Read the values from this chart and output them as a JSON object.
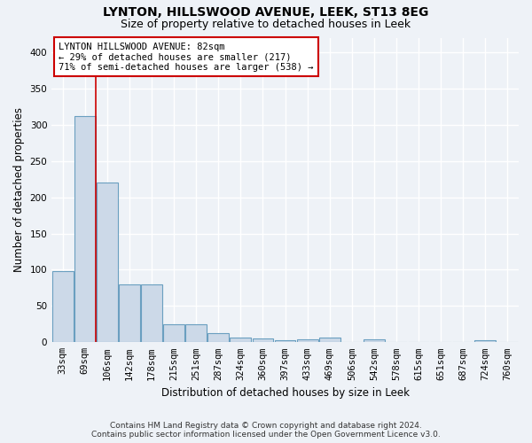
{
  "title": "LYNTON, HILLSWOOD AVENUE, LEEK, ST13 8EG",
  "subtitle": "Size of property relative to detached houses in Leek",
  "xlabel": "Distribution of detached houses by size in Leek",
  "ylabel": "Number of detached properties",
  "categories": [
    "33sqm",
    "69sqm",
    "106sqm",
    "142sqm",
    "178sqm",
    "215sqm",
    "251sqm",
    "287sqm",
    "324sqm",
    "360sqm",
    "397sqm",
    "433sqm",
    "469sqm",
    "506sqm",
    "542sqm",
    "578sqm",
    "615sqm",
    "651sqm",
    "687sqm",
    "724sqm",
    "760sqm"
  ],
  "values": [
    98,
    312,
    220,
    80,
    80,
    25,
    25,
    12,
    6,
    5,
    3,
    4,
    6,
    0,
    4,
    0,
    0,
    0,
    0,
    3,
    0
  ],
  "bar_color": "#ccd9e8",
  "bar_edge_color": "#6a9fc0",
  "property_line_x": 1.5,
  "annotation_text_line1": "LYNTON HILLSWOOD AVENUE: 82sqm",
  "annotation_text_line2": "← 29% of detached houses are smaller (217)",
  "annotation_text_line3": "71% of semi-detached houses are larger (538) →",
  "red_line_color": "#cc0000",
  "annotation_box_color": "#ffffff",
  "annotation_box_edge": "#cc0000",
  "background_color": "#eef2f7",
  "grid_color": "#ffffff",
  "footer_line1": "Contains HM Land Registry data © Crown copyright and database right 2024.",
  "footer_line2": "Contains public sector information licensed under the Open Government Licence v3.0.",
  "ylim": [
    0,
    420
  ],
  "yticks": [
    0,
    50,
    100,
    150,
    200,
    250,
    300,
    350,
    400
  ],
  "title_fontsize": 10,
  "subtitle_fontsize": 9,
  "tick_fontsize": 7.5,
  "ylabel_fontsize": 8.5,
  "xlabel_fontsize": 8.5,
  "footer_fontsize": 6.5,
  "annot_fontsize": 7.5
}
